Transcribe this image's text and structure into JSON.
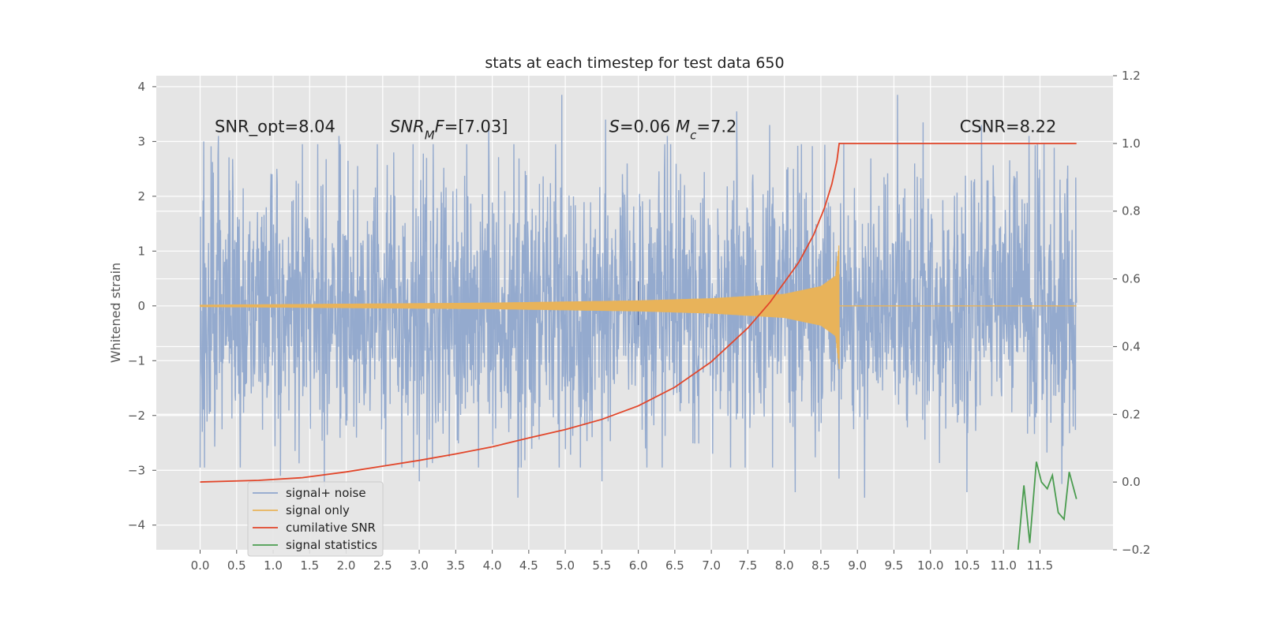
{
  "chart_data": {
    "type": "line",
    "title": "stats at each timestep for test data 650",
    "ylabel": "Whitened strain",
    "xlabel": "",
    "xlim": [
      -0.6,
      12.5
    ],
    "ylim": [
      -4.45,
      4.2
    ],
    "y2lim": [
      -0.2,
      1.2
    ],
    "grid": true,
    "x_ticks": [
      0.0,
      0.5,
      1.0,
      1.5,
      2.0,
      2.5,
      3.0,
      3.5,
      4.0,
      4.5,
      5.0,
      5.5,
      6.0,
      6.5,
      7.0,
      7.5,
      8.0,
      8.5,
      9.0,
      9.5,
      10.0,
      10.5,
      11.0,
      11.5
    ],
    "x_tick_labels": [
      "0.0",
      "0.5",
      "1.0",
      "1.5",
      "2.0",
      "2.5",
      "3.0",
      "3.5",
      "4.0",
      "4.5",
      "5.0",
      "5.5",
      "6.0",
      "6.5",
      "7.0",
      "7.5",
      "8.0",
      "8.5",
      "9.0",
      "9.5",
      "10.0",
      "10.5",
      "11.0",
      "11.5"
    ],
    "y_ticks": [
      4,
      3,
      2,
      1,
      0,
      -1,
      -2,
      -3,
      -4
    ],
    "y_tick_labels": [
      "4",
      "3",
      "2",
      "1",
      "0",
      "−1",
      "−2",
      "−3",
      "−4"
    ],
    "y2_ticks": [
      1.2,
      1.0,
      0.8,
      0.6,
      0.4,
      0.2,
      0.0,
      -0.2
    ],
    "y2_tick_labels": [
      "1.2",
      "1.0",
      "0.8",
      "0.6",
      "0.4",
      "0.2",
      "0.0",
      "−0.2"
    ],
    "annotations": [
      {
        "x": 0.2,
        "y": 3.2,
        "parts": [
          {
            "t": "SNR_opt=8.04"
          }
        ]
      },
      {
        "x": 2.6,
        "y": 3.2,
        "parts": [
          {
            "t": "SNR",
            "i": true
          },
          {
            "t": "M",
            "i": true,
            "sub": true
          },
          {
            "t": "F",
            "i": true
          },
          {
            "t": "=[7.03]"
          }
        ]
      },
      {
        "x": 5.6,
        "y": 3.2,
        "parts": [
          {
            "t": "S",
            "i": true
          },
          {
            "t": "=0.06   "
          },
          {
            "t": "M",
            "i": true
          },
          {
            "t": "c",
            "i": true,
            "sub": true
          },
          {
            "t": "=7.2"
          }
        ]
      },
      {
        "x": 10.4,
        "y": 3.2,
        "parts": [
          {
            "t": "CSNR=8.22"
          }
        ]
      }
    ],
    "series": [
      {
        "name": "signal+ noise",
        "color": "#8fa6cc",
        "axis": "left",
        "style": "noise",
        "x_start": 0.0,
        "x_end": 12.0,
        "sigma": 1.15,
        "peaks": [
          [
            0.05,
            3.0
          ],
          [
            0.25,
            3.1
          ],
          [
            1.05,
            2.5
          ],
          [
            1.9,
            3.1
          ],
          [
            2.65,
            2.8
          ],
          [
            3.1,
            2.7
          ],
          [
            3.95,
            3.3
          ],
          [
            4.95,
            3.85
          ],
          [
            5.55,
            3.4
          ],
          [
            5.5,
            -3.2
          ],
          [
            6.4,
            3.1
          ],
          [
            7.35,
            3.55
          ],
          [
            7.8,
            3.3
          ],
          [
            8.15,
            -3.4
          ],
          [
            8.75,
            -3.15
          ],
          [
            9.1,
            -3.5
          ],
          [
            9.55,
            3.85
          ],
          [
            9.9,
            3.35
          ],
          [
            10.7,
            3.3
          ],
          [
            11.35,
            3.1
          ],
          [
            1.1,
            -3.1
          ],
          [
            1.7,
            -3.3
          ],
          [
            4.35,
            -3.5
          ],
          [
            3.0,
            -3.2
          ],
          [
            11.8,
            -3.25
          ],
          [
            10.5,
            -3.4
          ],
          [
            0.55,
            -2.95
          ]
        ]
      },
      {
        "name": "signal only",
        "color": "#e8b35a",
        "axis": "left",
        "style": "chirp",
        "x_start": 0.0,
        "x_end": 12.0,
        "merger_x": 8.75,
        "envelope": [
          [
            0.0,
            0.02
          ],
          [
            2.0,
            0.04
          ],
          [
            4.0,
            0.06
          ],
          [
            6.0,
            0.1
          ],
          [
            7.0,
            0.14
          ],
          [
            8.0,
            0.22
          ],
          [
            8.5,
            0.36
          ],
          [
            8.7,
            0.55
          ],
          [
            8.75,
            1.15
          ],
          [
            8.8,
            0.0
          ]
        ]
      },
      {
        "name": "cumilative SNR",
        "color": "#e2462a",
        "axis": "right",
        "x": [
          0.0,
          0.8,
          1.4,
          2.0,
          2.5,
          3.0,
          3.5,
          4.0,
          4.5,
          5.0,
          5.5,
          6.0,
          6.5,
          7.0,
          7.5,
          7.8,
          8.0,
          8.2,
          8.4,
          8.55,
          8.65,
          8.72,
          8.75,
          9.5,
          10.0,
          11.0,
          12.0
        ],
        "values": [
          0.0,
          0.005,
          0.013,
          0.03,
          0.047,
          0.064,
          0.083,
          0.104,
          0.13,
          0.155,
          0.185,
          0.225,
          0.28,
          0.355,
          0.455,
          0.53,
          0.59,
          0.65,
          0.73,
          0.81,
          0.88,
          0.95,
          1.0,
          1.0,
          1.0,
          1.0,
          1.0
        ]
      },
      {
        "name": "signal statistics",
        "color": "#4a9c4f",
        "axis": "right",
        "x": [
          11.2,
          11.28,
          11.36,
          11.45,
          11.52,
          11.6,
          11.67,
          11.75,
          11.83,
          11.9,
          12.0
        ],
        "values": [
          -0.2,
          -0.01,
          -0.18,
          0.06,
          0.0,
          -0.02,
          0.02,
          -0.09,
          -0.11,
          0.03,
          -0.05
        ]
      }
    ],
    "legend": {
      "placement": "lower-left",
      "entries": [
        "signal+ noise",
        "signal only",
        "cumilative SNR",
        "signal statistics"
      ]
    },
    "background": "#e5e5e5",
    "grid_color": "#ffffff"
  }
}
